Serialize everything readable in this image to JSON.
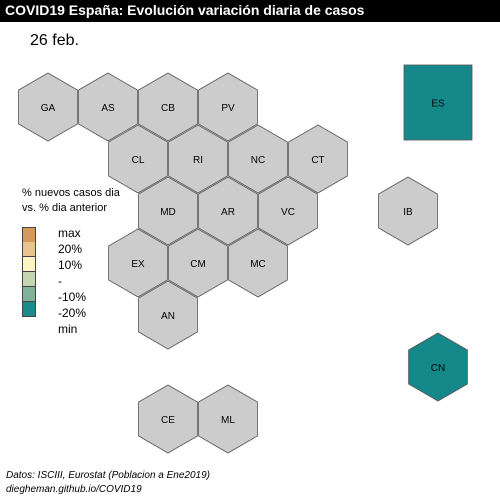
{
  "title": "COVID19 España: Evolución variación diaria de casos",
  "date_label": "26 feb.",
  "legend": {
    "title_lines": [
      "% nuevos casos dia",
      "vs. % dia anterior"
    ],
    "items": [
      {
        "label": "max",
        "color": "#d4985a"
      },
      {
        "label": "20%",
        "color": "#e8c48e"
      },
      {
        "label": "10%",
        "color": "#fdf4c4"
      },
      {
        "label": "-",
        "color": "#c6d6b2"
      },
      {
        "label": "-10%",
        "color": "#80b39a"
      },
      {
        "label": "-20%",
        "color": "#1b8b8a"
      },
      {
        "label": "min",
        "color": null
      }
    ]
  },
  "colors": {
    "no_data": "#cccccc",
    "min": "#15888a",
    "border": "#555555"
  },
  "regions": [
    {
      "code": "GA",
      "fill": "no_data"
    },
    {
      "code": "AS",
      "fill": "no_data"
    },
    {
      "code": "CB",
      "fill": "no_data"
    },
    {
      "code": "PV",
      "fill": "no_data"
    },
    {
      "code": "CL",
      "fill": "no_data"
    },
    {
      "code": "RI",
      "fill": "no_data"
    },
    {
      "code": "NC",
      "fill": "no_data"
    },
    {
      "code": "CT",
      "fill": "no_data"
    },
    {
      "code": "MD",
      "fill": "no_data"
    },
    {
      "code": "AR",
      "fill": "no_data"
    },
    {
      "code": "VC",
      "fill": "no_data"
    },
    {
      "code": "IB",
      "fill": "no_data"
    },
    {
      "code": "EX",
      "fill": "no_data"
    },
    {
      "code": "CM",
      "fill": "no_data"
    },
    {
      "code": "MC",
      "fill": "no_data"
    },
    {
      "code": "AN",
      "fill": "no_data"
    },
    {
      "code": "CE",
      "fill": "no_data"
    },
    {
      "code": "ML",
      "fill": "no_data"
    },
    {
      "code": "CN",
      "fill": "min"
    },
    {
      "code": "ES",
      "fill": "min"
    }
  ],
  "source_lines": [
    "Datos: ISCIII, Eurostat (Poblacion a Ene2019)",
    "diegheman.github.io/COVID19"
  ]
}
